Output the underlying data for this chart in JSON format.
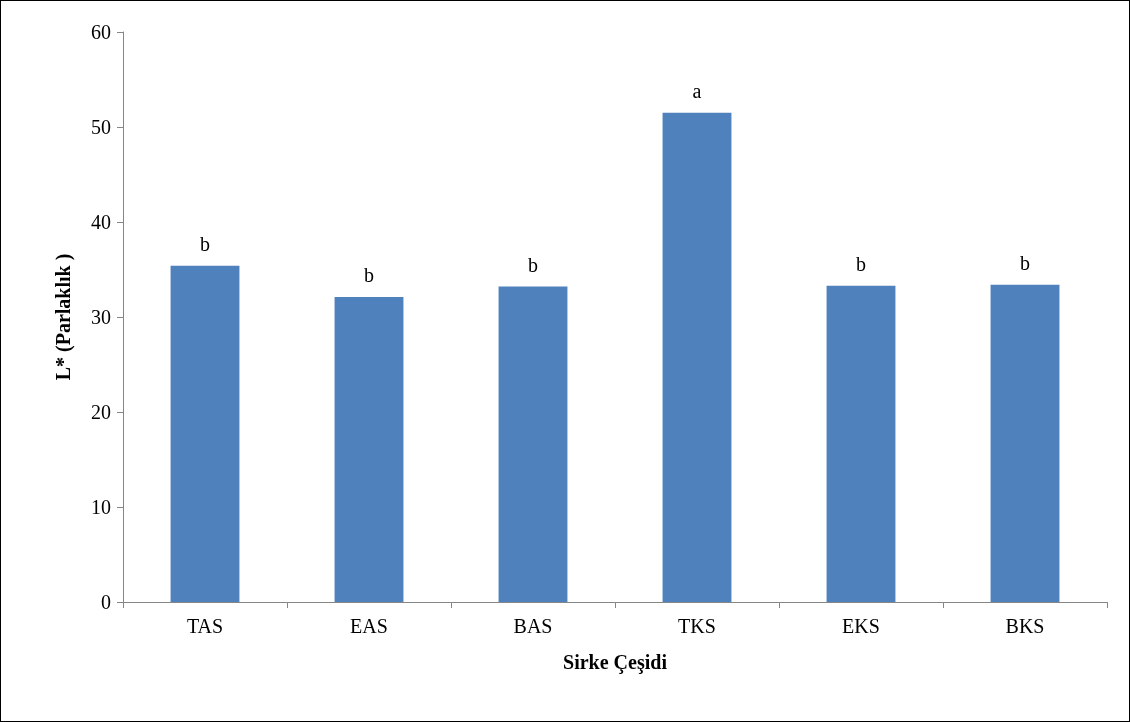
{
  "chart_data": {
    "type": "bar",
    "xlabel": "Sirke Çeşidi",
    "ylabel": "L* (Parlaklık )",
    "categories": [
      "TAS",
      "EAS",
      "BAS",
      "TKS",
      "EKS",
      "BKS"
    ],
    "values": [
      35.4,
      32.1,
      33.2,
      51.5,
      33.3,
      33.4
    ],
    "value_labels": [
      "b",
      "b",
      "b",
      "a",
      "b",
      "b"
    ],
    "color": "#4f81bd",
    "ylim": [
      0,
      60
    ],
    "yticks": [
      0,
      10,
      20,
      30,
      40,
      50,
      60
    ],
    "grid": false
  }
}
